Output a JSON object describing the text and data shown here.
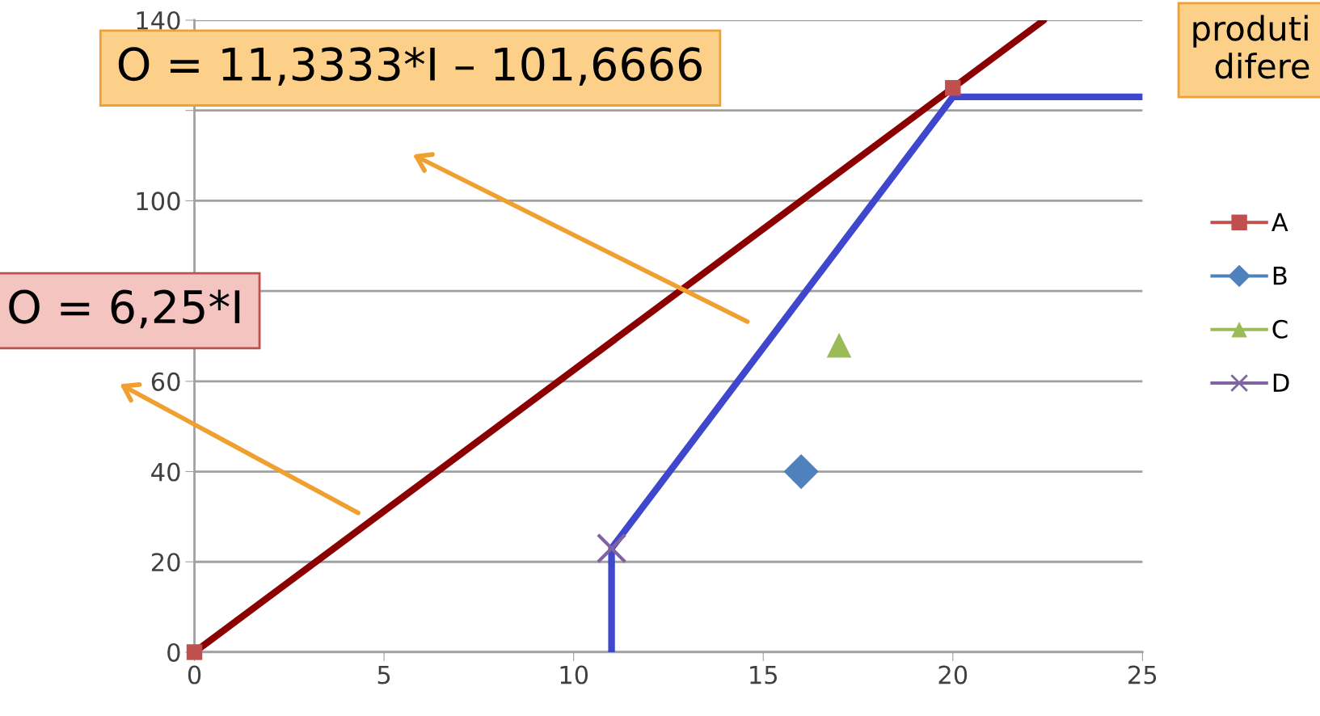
{
  "chart_data": {
    "type": "scatter",
    "series": [
      {
        "name": "A",
        "color": "#c0504d",
        "marker": "square",
        "x": [
          0,
          20
        ],
        "values": [
          0,
          125
        ]
      },
      {
        "name": "B",
        "color": "#4f81bd",
        "marker": "diamond",
        "x": [
          16
        ],
        "values": [
          40
        ]
      },
      {
        "name": "C",
        "color": "#9bbb59",
        "marker": "triangle",
        "x": [
          17
        ],
        "values": [
          68
        ]
      },
      {
        "name": "D",
        "color": "#8064a2",
        "marker": "cross",
        "x": [
          11
        ],
        "values": [
          23
        ]
      },
      {
        "type": "line",
        "color": "#8b0000",
        "x": [
          0,
          22.4
        ],
        "values": [
          0,
          140
        ]
      },
      {
        "type": "line",
        "color": "#3f48cc",
        "x": [
          11,
          11,
          20,
          25
        ],
        "values": [
          0,
          23,
          123,
          123
        ]
      }
    ],
    "xlim": [
      0,
      25
    ],
    "xticks": [
      0,
      5,
      10,
      15,
      20,
      25
    ],
    "ylim": [
      0,
      140
    ],
    "yticks": [
      0,
      20,
      40,
      60,
      {
        "value": 80,
        "label": null
      },
      100,
      {
        "value": 120,
        "label": null
      },
      140
    ],
    "grid": "y",
    "legend": "right",
    "annotations": [
      "O = 11,3333*I – 101,6666",
      "O = 6,25*I",
      "produti\ndifere"
    ]
  }
}
